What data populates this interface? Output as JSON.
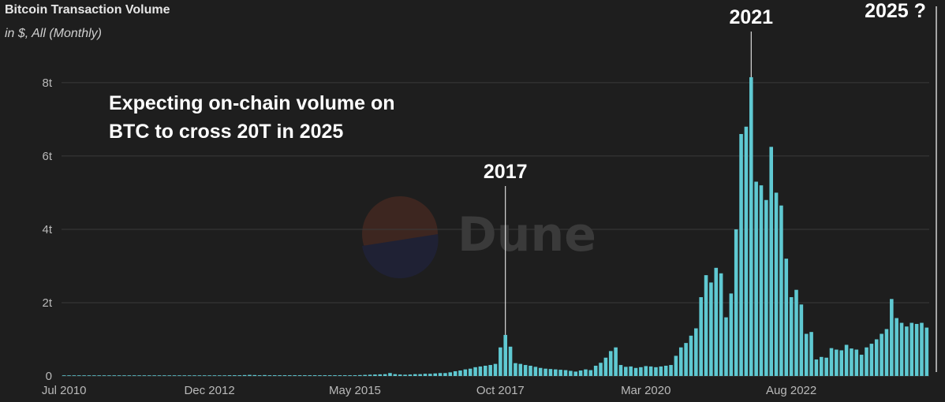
{
  "header": {
    "title": "Bitcoin Transaction Volume",
    "subtitle": "in $, All (Monthly)"
  },
  "note": {
    "line1": "Expecting on-chain volume on",
    "line2": "BTC to cross 20T in 2025"
  },
  "watermark": {
    "text": "Dune"
  },
  "colors": {
    "background": "#1e1e1e",
    "bar": "#5fc9d2",
    "grid": "#3a3a3a",
    "annotation": "#ffffff"
  },
  "chart_data": {
    "type": "bar",
    "title": "Bitcoin Transaction Volume",
    "subtitle": "in $, All (Monthly)",
    "xlabel": "",
    "ylabel": "",
    "ylim": [
      0,
      8.6
    ],
    "y_ticks": [
      {
        "value": 0,
        "label": "0"
      },
      {
        "value": 2,
        "label": "2t"
      },
      {
        "value": 4,
        "label": "4t"
      },
      {
        "value": 6,
        "label": "6t"
      },
      {
        "value": 8,
        "label": "8t"
      }
    ],
    "x_ticks": [
      {
        "month_index": 0,
        "label": "Jul 2010"
      },
      {
        "month_index": 29,
        "label": "Dec 2012"
      },
      {
        "month_index": 58,
        "label": "May 2015"
      },
      {
        "month_index": 87,
        "label": "Oct 2017"
      },
      {
        "month_index": 116,
        "label": "Mar 2020"
      },
      {
        "month_index": 145,
        "label": "Aug 2022"
      }
    ],
    "start_month": "Jul 2010",
    "units": "trillion USD",
    "series": [
      {
        "values": [
          0.001,
          0.001,
          0.002,
          0.002,
          0.002,
          0.002,
          0.003,
          0.003,
          0.004,
          0.006,
          0.01,
          0.012,
          0.01,
          0.008,
          0.008,
          0.008,
          0.008,
          0.009,
          0.009,
          0.009,
          0.009,
          0.01,
          0.012,
          0.012,
          0.012,
          0.011,
          0.011,
          0.012,
          0.012,
          0.012,
          0.013,
          0.015,
          0.017,
          0.02,
          0.02,
          0.02,
          0.025,
          0.03,
          0.025,
          0.02,
          0.025,
          0.02,
          0.02,
          0.02,
          0.02,
          0.02,
          0.02,
          0.02,
          0.02,
          0.02,
          0.02,
          0.02,
          0.02,
          0.02,
          0.02,
          0.02,
          0.02,
          0.02,
          0.02,
          0.025,
          0.03,
          0.035,
          0.04,
          0.045,
          0.05,
          0.08,
          0.05,
          0.04,
          0.035,
          0.04,
          0.05,
          0.05,
          0.06,
          0.06,
          0.07,
          0.08,
          0.08,
          0.1,
          0.13,
          0.15,
          0.18,
          0.2,
          0.24,
          0.26,
          0.28,
          0.3,
          0.33,
          0.78,
          1.12,
          0.8,
          0.35,
          0.33,
          0.3,
          0.28,
          0.25,
          0.22,
          0.2,
          0.19,
          0.18,
          0.17,
          0.16,
          0.14,
          0.12,
          0.15,
          0.18,
          0.16,
          0.28,
          0.36,
          0.5,
          0.68,
          0.78,
          0.3,
          0.25,
          0.26,
          0.22,
          0.24,
          0.27,
          0.26,
          0.24,
          0.26,
          0.28,
          0.3,
          0.55,
          0.78,
          0.9,
          1.1,
          1.3,
          2.15,
          2.75,
          2.55,
          2.95,
          2.8,
          1.6,
          2.25,
          4.0,
          6.6,
          6.8,
          8.15,
          5.3,
          5.2,
          4.8,
          6.25,
          5.0,
          4.65,
          3.2,
          2.15,
          2.35,
          1.95,
          1.15,
          1.2,
          0.45,
          0.52,
          0.5,
          0.76,
          0.72,
          0.7,
          0.85,
          0.75,
          0.72,
          0.58,
          0.78,
          0.88,
          1.0,
          1.15,
          1.28,
          2.1,
          1.58,
          1.45,
          1.35,
          1.45,
          1.42,
          1.45,
          1.32
        ]
      }
    ],
    "annotations": [
      {
        "label": "2017",
        "month_index": 88
      },
      {
        "label": "2021",
        "month_index": 137
      },
      {
        "label": "2025 ?",
        "month_index": 178
      }
    ]
  }
}
